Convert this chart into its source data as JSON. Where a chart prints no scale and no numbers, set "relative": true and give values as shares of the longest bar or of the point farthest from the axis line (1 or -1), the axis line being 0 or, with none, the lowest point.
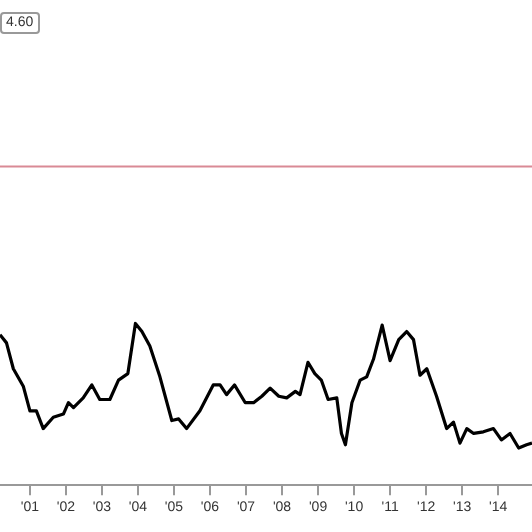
{
  "chart_data": {
    "type": "line",
    "relative": true,
    "x": [
      2000.17,
      2000.35,
      2000.54,
      2000.82,
      2001.0,
      2001.18,
      2001.37,
      2001.65,
      2001.93,
      2002.07,
      2002.21,
      2002.48,
      2002.72,
      2002.94,
      2003.22,
      2003.46,
      2003.72,
      2003.93,
      2004.11,
      2004.33,
      2004.61,
      2004.94,
      2005.13,
      2005.35,
      2005.72,
      2006.09,
      2006.28,
      2006.46,
      2006.68,
      2006.98,
      2007.21,
      2007.44,
      2007.67,
      2007.91,
      2008.13,
      2008.37,
      2008.5,
      2008.72,
      2008.91,
      2009.09,
      2009.28,
      2009.52,
      2009.65,
      2009.76,
      2009.94,
      2010.17,
      2010.35,
      2010.54,
      2010.78,
      2011.0,
      2011.24,
      2011.46,
      2011.65,
      2011.83,
      2012.02,
      2012.29,
      2012.57,
      2012.76,
      2012.94,
      2013.13,
      2013.32,
      2013.59,
      2013.87,
      2014.09,
      2014.33,
      2014.57,
      2014.79,
      2014.94
    ],
    "series": [
      {
        "color": "#000000",
        "values": [
          0.93,
          0.88,
          0.72,
          0.61,
          0.46,
          0.46,
          0.35,
          0.42,
          0.44,
          0.51,
          0.48,
          0.54,
          0.62,
          0.53,
          0.53,
          0.65,
          0.69,
          1,
          0.95,
          0.86,
          0.67,
          0.4,
          0.41,
          0.35,
          0.46,
          0.62,
          0.62,
          0.56,
          0.62,
          0.51,
          0.51,
          0.55,
          0.6,
          0.55,
          0.54,
          0.58,
          0.56,
          0.76,
          0.69,
          0.65,
          0.53,
          0.54,
          0.32,
          0.25,
          0.51,
          0.65,
          0.67,
          0.78,
          0.99,
          0.77,
          0.9,
          0.95,
          0.9,
          0.68,
          0.72,
          0.55,
          0.35,
          0.39,
          0.26,
          0.35,
          0.32,
          0.33,
          0.35,
          0.28,
          0.32,
          0.23,
          0.25,
          0.26
        ]
      }
    ],
    "xlim": [
      2000.17,
      2014.94
    ],
    "xticks": [
      {
        "value": 2001,
        "label": "'01"
      },
      {
        "value": 2002,
        "label": "'02"
      },
      {
        "value": 2003,
        "label": "'03"
      },
      {
        "value": 2004,
        "label": "'04"
      },
      {
        "value": 2005,
        "label": "'05"
      },
      {
        "value": 2006,
        "label": "'06"
      },
      {
        "value": 2007,
        "label": "'07"
      },
      {
        "value": 2008,
        "label": "'08"
      },
      {
        "value": 2009,
        "label": "'09"
      },
      {
        "value": 2010,
        "label": "'10"
      },
      {
        "value": 2011,
        "label": "'11"
      },
      {
        "value": 2012,
        "label": "'12"
      },
      {
        "value": 2013,
        "label": "'13"
      },
      {
        "value": 2014,
        "label": "'14"
      }
    ],
    "ref_lines": [
      {
        "axis": "y",
        "value": 1.97,
        "color": "#d98a95"
      }
    ],
    "annotations": [
      "4.60"
    ],
    "grid": false,
    "legend": false,
    "marker": "none",
    "line_style": "solid"
  }
}
